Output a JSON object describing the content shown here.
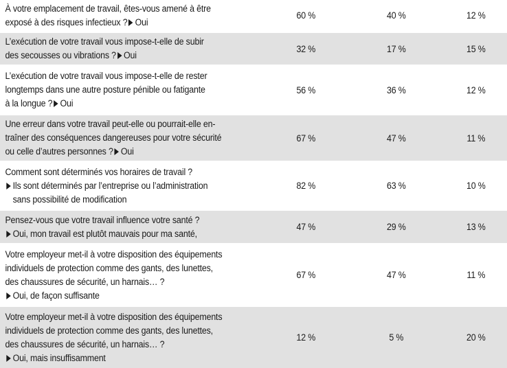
{
  "rows": [
    {
      "lines": [
        "À votre emplacement de travail, êtes-vous amené à être",
        "exposé à des risques infectieux ?"
      ],
      "answer": "Oui",
      "answer_inline": true,
      "values": [
        "60 %",
        "40 %",
        "12 %"
      ]
    },
    {
      "lines": [
        "L’exécution de votre travail vous impose-t-elle de subir",
        "des secousses ou vibrations ?"
      ],
      "answer": "Oui",
      "answer_inline": true,
      "values": [
        "32 %",
        "17 %",
        "15 %"
      ]
    },
    {
      "lines": [
        "L’exécution de votre travail vous impose-t-elle de rester",
        "longtemps dans une autre posture pénible ou fatigante",
        "à la longue ?"
      ],
      "answer": "Oui",
      "answer_inline": true,
      "values": [
        "56 %",
        "36 %",
        "12 %"
      ]
    },
    {
      "lines": [
        "Une erreur dans votre travail peut-elle ou pourrait-elle en-",
        "traîner des conséquences dangereuses pour votre sécurité",
        "ou celle d’autres personnes ?"
      ],
      "answer": "Oui",
      "answer_inline": true,
      "values": [
        "67 %",
        "47 %",
        "11 %"
      ]
    },
    {
      "lines": [
        "Comment sont déterminés vos horaires de travail ?"
      ],
      "answer_lines": [
        "Ils sont déterminés par l’entreprise ou l’administration",
        "sans possibilité de modification"
      ],
      "values": [
        "82 %",
        "63 %",
        "10 %"
      ]
    },
    {
      "lines": [
        "Pensez-vous que votre travail influence votre santé ?"
      ],
      "answer_lines": [
        "Oui, mon travail est plutôt mauvais pour ma santé,"
      ],
      "values": [
        "47 %",
        "29 %",
        "13 %"
      ]
    },
    {
      "lines": [
        "Votre employeur met-il à votre disposition des équipements",
        "individuels de protection comme des gants, des lunettes,",
        "des chaussures de sécurité, un harnais… ?"
      ],
      "answer_lines": [
        "Oui, de façon suffisante"
      ],
      "values": [
        "67 %",
        "47 %",
        "11 %"
      ]
    },
    {
      "lines": [
        "Votre employeur met-il à votre disposition des équipements",
        "individuels de protection comme des gants, des lunettes,",
        "des chaussures de sécurité, un harnais… ?"
      ],
      "answer_lines": [
        "Oui, mais insuffisamment"
      ],
      "values": [
        "12 %",
        "5 %",
        "20 %"
      ]
    }
  ]
}
